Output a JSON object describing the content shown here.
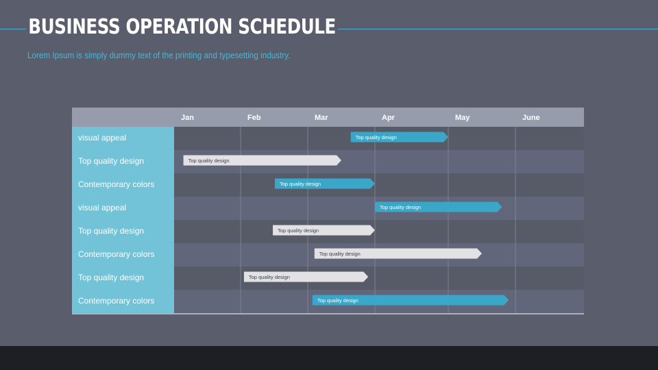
{
  "header": {
    "title": "BUSINESS OPERATION SCHEDULE",
    "subtitle": "Lorem Ipsum is simply dummy text of the printing and typesetting industry."
  },
  "colors": {
    "background": "#5a5e6c",
    "accent": "#4fb3d3",
    "label_column": "#72c3d8",
    "header_row": "#979cad",
    "bar_blue": "#3aa7c8",
    "bar_white": "#e2e2e4",
    "footer": "#1d1f24"
  },
  "chart_data": {
    "type": "gantt",
    "months": [
      "Jan",
      "Feb",
      "Mar",
      "Apr",
      "May",
      "June"
    ],
    "x_range_months": [
      0,
      6
    ],
    "grid": true,
    "tasks": [
      {
        "label": "visual appeal",
        "bar_text": "Top quality design",
        "start": 2.64,
        "end": 4.0,
        "color": "blue"
      },
      {
        "label": "Top quality design",
        "bar_text": "Top quality design",
        "start": 0.14,
        "end": 2.5,
        "color": "white"
      },
      {
        "label": "Contemporary colors",
        "bar_text": "Top quality design",
        "start": 1.51,
        "end": 3.0,
        "color": "blue"
      },
      {
        "label": "visual appeal",
        "bar_text": "Top quality design",
        "start": 3.0,
        "end": 4.8,
        "color": "blue"
      },
      {
        "label": "Top quality design",
        "bar_text": "Top quality design",
        "start": 1.48,
        "end": 3.0,
        "color": "white"
      },
      {
        "label": "Contemporary colors",
        "bar_text": "Top quality design",
        "start": 2.1,
        "end": 4.5,
        "color": "white"
      },
      {
        "label": "Top quality design",
        "bar_text": "Top quality design",
        "start": 1.05,
        "end": 2.9,
        "color": "white"
      },
      {
        "label": "Contemporary colors",
        "bar_text": "Top quality design",
        "start": 2.07,
        "end": 4.9,
        "color": "blue"
      }
    ]
  }
}
